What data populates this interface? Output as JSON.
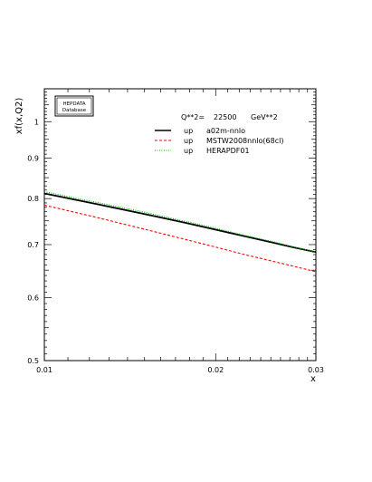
{
  "chart_data": {
    "type": "line",
    "ylabel": "xf(x,Q2)",
    "xlabel": "x",
    "xscale": "log",
    "yscale": "log",
    "xlim": [
      0.01,
      0.03
    ],
    "ylim": [
      0.5,
      1.1
    ],
    "xticks": [
      0.01,
      0.02,
      0.03
    ],
    "xtick_labels": [
      "0.01",
      "0.02",
      "0.03"
    ],
    "yticks": [
      0.5,
      0.6,
      0.7,
      0.8,
      0.9,
      1
    ],
    "ytick_labels": [
      "0.5",
      "0.6",
      "0.7",
      "0.8",
      "0.9",
      "1"
    ],
    "logo_lines": [
      "HEPDATA",
      "Database"
    ],
    "annotation": {
      "label": "Q**2=",
      "value": "22500",
      "unit": "GeV**2"
    },
    "grid": false,
    "legend_position": "top-right",
    "series": [
      {
        "name": "a02m-nnlo",
        "legend_prefix": "up",
        "color": "#000000",
        "style": "solid",
        "x": [
          0.01,
          0.0125,
          0.015,
          0.0175,
          0.02,
          0.0225,
          0.025,
          0.0275,
          0.03
        ],
        "y": [
          0.812,
          0.786,
          0.765,
          0.747,
          0.731,
          0.717,
          0.705,
          0.694,
          0.685
        ]
      },
      {
        "name": "MSTW2008nnlo(68cl)",
        "legend_prefix": "up",
        "color": "#ff0000",
        "style": "dashed",
        "x": [
          0.01,
          0.0125,
          0.015,
          0.0175,
          0.02,
          0.0225,
          0.025,
          0.0275,
          0.03
        ],
        "y": [
          0.785,
          0.756,
          0.732,
          0.712,
          0.695,
          0.68,
          0.668,
          0.657,
          0.647
        ]
      },
      {
        "name": "HERAPDF01",
        "legend_prefix": "up",
        "color": "#00bb00",
        "style": "dotted",
        "x": [
          0.01,
          0.0125,
          0.015,
          0.0175,
          0.02,
          0.0225,
          0.025,
          0.0275,
          0.03
        ],
        "y": [
          0.816,
          0.79,
          0.769,
          0.75,
          0.734,
          0.719,
          0.707,
          0.695,
          0.685
        ]
      }
    ]
  }
}
